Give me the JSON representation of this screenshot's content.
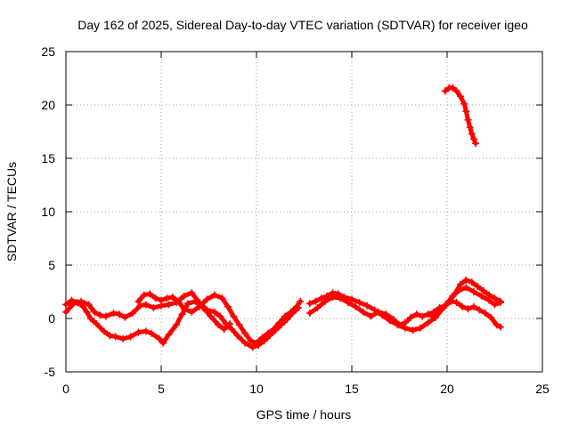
{
  "chart_data": {
    "type": "scatter",
    "title": "Day 162 of 2025, Sidereal Day-to-day VTEC variation (SDTVAR) for receiver igeo",
    "xlabel": "GPS time / hours",
    "ylabel": "SDTVAR / TECUs",
    "xlim": [
      0,
      25
    ],
    "ylim": [
      -5,
      25
    ],
    "xticks": [
      0,
      5,
      10,
      15,
      20,
      25
    ],
    "yticks": [
      -5,
      0,
      5,
      10,
      15,
      20,
      25
    ],
    "grid": true,
    "marker": "+",
    "series": [
      {
        "name": "track-a",
        "color": "#ff0000",
        "points": [
          [
            0.0,
            1.3
          ],
          [
            0.3,
            1.7
          ],
          [
            0.6,
            1.5
          ],
          [
            0.9,
            1.1
          ],
          [
            1.1,
            0.6
          ],
          [
            1.3,
            0.0
          ],
          [
            1.6,
            -0.5
          ],
          [
            2.0,
            -1.2
          ],
          [
            2.3,
            -1.6
          ],
          [
            2.6,
            -1.7
          ],
          [
            3.0,
            -1.9
          ],
          [
            3.4,
            -1.7
          ],
          [
            3.8,
            -1.3
          ],
          [
            4.2,
            -1.2
          ],
          [
            4.5,
            -1.4
          ],
          [
            4.9,
            -1.9
          ],
          [
            5.1,
            -2.3
          ],
          [
            5.4,
            -1.5
          ],
          [
            5.8,
            -0.6
          ],
          [
            6.1,
            0.4
          ],
          [
            6.4,
            1.4
          ],
          [
            6.8,
            1.6
          ],
          [
            7.2,
            1.0
          ],
          [
            7.6,
            0.2
          ],
          [
            8.0,
            -0.6
          ],
          [
            8.3,
            -1.0
          ],
          [
            8.6,
            -0.5
          ]
        ]
      },
      {
        "name": "track-b",
        "color": "#ff0000",
        "points": [
          [
            0.0,
            0.6
          ],
          [
            0.4,
            1.4
          ],
          [
            0.8,
            1.6
          ],
          [
            1.2,
            1.3
          ],
          [
            1.5,
            0.6
          ],
          [
            1.8,
            0.3
          ],
          [
            2.1,
            0.2
          ],
          [
            2.5,
            0.5
          ],
          [
            2.8,
            0.4
          ],
          [
            3.1,
            0.1
          ],
          [
            3.5,
            0.5
          ],
          [
            3.9,
            1.2
          ],
          [
            4.2,
            1.3
          ],
          [
            4.6,
            1.0
          ],
          [
            5.0,
            1.2
          ],
          [
            5.4,
            1.3
          ],
          [
            5.8,
            1.5
          ],
          [
            6.2,
            2.1
          ],
          [
            6.6,
            2.4
          ],
          [
            7.0,
            1.5
          ],
          [
            7.4,
            0.8
          ],
          [
            7.8,
            0.6
          ],
          [
            8.1,
            0.2
          ],
          [
            8.4,
            -0.5
          ],
          [
            8.7,
            -1.0
          ],
          [
            9.0,
            -1.6
          ],
          [
            9.4,
            -2.3
          ],
          [
            9.8,
            -2.7
          ],
          [
            10.1,
            -2.5
          ],
          [
            10.4,
            -2.1
          ],
          [
            10.7,
            -1.6
          ],
          [
            11.0,
            -1.1
          ],
          [
            11.3,
            -0.6
          ],
          [
            11.6,
            -0.1
          ],
          [
            11.9,
            0.5
          ],
          [
            12.2,
            1.0
          ]
        ]
      },
      {
        "name": "track-c",
        "color": "#ff0000",
        "points": [
          [
            3.8,
            1.6
          ],
          [
            4.1,
            2.2
          ],
          [
            4.4,
            2.3
          ],
          [
            4.7,
            1.9
          ],
          [
            5.0,
            1.7
          ],
          [
            5.3,
            1.9
          ],
          [
            5.6,
            2.0
          ],
          [
            5.9,
            1.6
          ],
          [
            6.2,
            0.9
          ],
          [
            6.6,
            0.6
          ],
          [
            7.0,
            1.1
          ],
          [
            7.4,
            1.8
          ],
          [
            7.8,
            2.2
          ],
          [
            8.2,
            1.9
          ],
          [
            8.5,
            1.1
          ],
          [
            8.8,
            0.2
          ],
          [
            9.1,
            -0.6
          ],
          [
            9.4,
            -1.4
          ],
          [
            9.7,
            -2.1
          ],
          [
            10.0,
            -2.3
          ],
          [
            10.3,
            -1.8
          ],
          [
            10.6,
            -1.4
          ],
          [
            10.9,
            -1.0
          ],
          [
            11.2,
            -0.4
          ],
          [
            11.5,
            0.2
          ],
          [
            11.8,
            0.6
          ],
          [
            12.1,
            1.1
          ],
          [
            12.3,
            1.6
          ]
        ]
      },
      {
        "name": "track-d",
        "color": "#ff0000",
        "points": [
          [
            12.8,
            1.4
          ],
          [
            13.1,
            1.6
          ],
          [
            13.4,
            1.9
          ],
          [
            13.7,
            2.1
          ],
          [
            14.0,
            2.4
          ],
          [
            14.3,
            2.3
          ],
          [
            14.6,
            2.0
          ],
          [
            15.0,
            1.8
          ],
          [
            15.4,
            1.5
          ],
          [
            15.8,
            1.2
          ],
          [
            16.2,
            0.8
          ],
          [
            16.6,
            0.3
          ],
          [
            17.0,
            -0.2
          ],
          [
            17.4,
            -0.6
          ],
          [
            17.8,
            -0.9
          ],
          [
            18.2,
            -1.1
          ],
          [
            18.6,
            -0.9
          ],
          [
            19.0,
            -0.4
          ],
          [
            19.4,
            0.1
          ],
          [
            19.7,
            0.8
          ],
          [
            20.0,
            1.4
          ],
          [
            20.3,
            2.1
          ],
          [
            20.6,
            2.6
          ],
          [
            21.0,
            2.9
          ],
          [
            21.4,
            2.5
          ],
          [
            21.8,
            2.1
          ],
          [
            22.2,
            1.7
          ],
          [
            22.5,
            1.3
          ],
          [
            22.8,
            1.5
          ]
        ]
      },
      {
        "name": "track-e",
        "color": "#ff0000",
        "points": [
          [
            12.8,
            0.5
          ],
          [
            13.2,
            1.0
          ],
          [
            13.6,
            1.6
          ],
          [
            14.0,
            2.0
          ],
          [
            14.4,
            1.9
          ],
          [
            14.8,
            1.5
          ],
          [
            15.2,
            1.1
          ],
          [
            15.6,
            0.6
          ],
          [
            16.0,
            0.2
          ],
          [
            16.4,
            0.6
          ],
          [
            16.8,
            0.4
          ],
          [
            17.2,
            -0.1
          ],
          [
            17.5,
            -0.6
          ],
          [
            17.8,
            -0.4
          ],
          [
            18.1,
            0.1
          ],
          [
            18.4,
            0.4
          ],
          [
            18.7,
            0.2
          ],
          [
            19.0,
            0.4
          ],
          [
            19.3,
            0.6
          ],
          [
            19.6,
            1.0
          ],
          [
            19.9,
            1.2
          ],
          [
            20.2,
            1.6
          ],
          [
            20.5,
            1.5
          ],
          [
            20.8,
            1.1
          ],
          [
            21.1,
            0.9
          ],
          [
            21.4,
            1.1
          ],
          [
            21.7,
            0.8
          ],
          [
            22.0,
            0.5
          ],
          [
            22.3,
            0.1
          ],
          [
            22.6,
            -0.6
          ],
          [
            22.8,
            -0.8
          ]
        ]
      },
      {
        "name": "track-f",
        "color": "#ff0000",
        "points": [
          [
            19.2,
            0.2
          ],
          [
            19.5,
            0.6
          ],
          [
            19.8,
            1.0
          ],
          [
            20.1,
            1.6
          ],
          [
            20.4,
            2.3
          ],
          [
            20.7,
            3.2
          ],
          [
            21.0,
            3.6
          ],
          [
            21.3,
            3.4
          ],
          [
            21.6,
            3.0
          ],
          [
            21.9,
            2.6
          ],
          [
            22.2,
            2.2
          ],
          [
            22.5,
            1.9
          ],
          [
            22.8,
            1.6
          ]
        ]
      },
      {
        "name": "track-g",
        "color": "#ff0000",
        "points": [
          [
            19.9,
            21.3
          ],
          [
            20.1,
            21.6
          ],
          [
            20.3,
            21.6
          ],
          [
            20.5,
            21.3
          ],
          [
            20.7,
            20.8
          ],
          [
            20.9,
            20.1
          ],
          [
            21.0,
            19.4
          ],
          [
            21.1,
            18.6
          ],
          [
            21.2,
            17.9
          ],
          [
            21.3,
            17.3
          ],
          [
            21.4,
            16.8
          ],
          [
            21.5,
            16.4
          ]
        ]
      }
    ]
  }
}
